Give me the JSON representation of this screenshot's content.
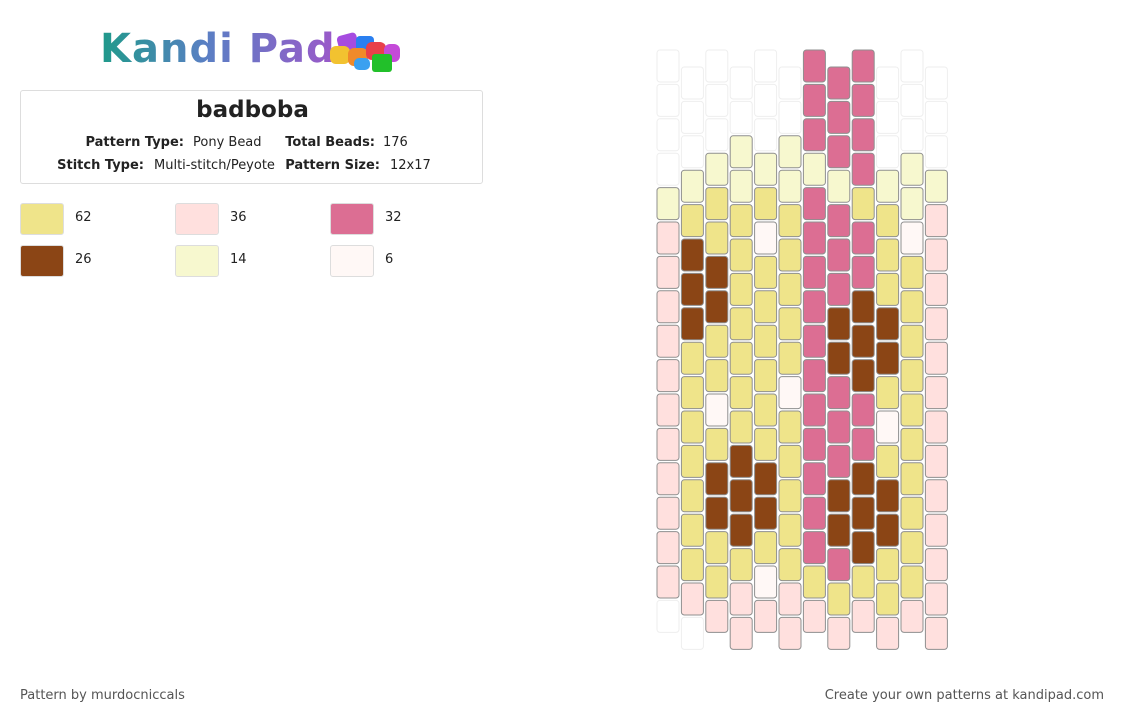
{
  "header": {
    "brand": "Kandi Pad"
  },
  "pattern": {
    "title": "badboba",
    "details": [
      {
        "label": "Pattern Type:",
        "value": "Pony Bead"
      },
      {
        "label": "Total Beads:",
        "value": "176"
      },
      {
        "label": "Stitch Type:",
        "value": "Multi-stitch/Peyote"
      },
      {
        "label": "Pattern Size:",
        "value": "12x17"
      }
    ]
  },
  "legend": [
    {
      "color": "#efe48a",
      "count": 62
    },
    {
      "color": "#ffe0de",
      "count": 36
    },
    {
      "color": "#dc6e93",
      "count": 32
    },
    {
      "color": "#8b4515",
      "count": 26
    },
    {
      "color": "#f7f8cf",
      "count": 14
    },
    {
      "color": "#fff8f6",
      "count": 6
    }
  ],
  "footer": {
    "credit": "Pattern by murdocniccals",
    "promo": "Create your own patterns at kandipad.com"
  }
}
